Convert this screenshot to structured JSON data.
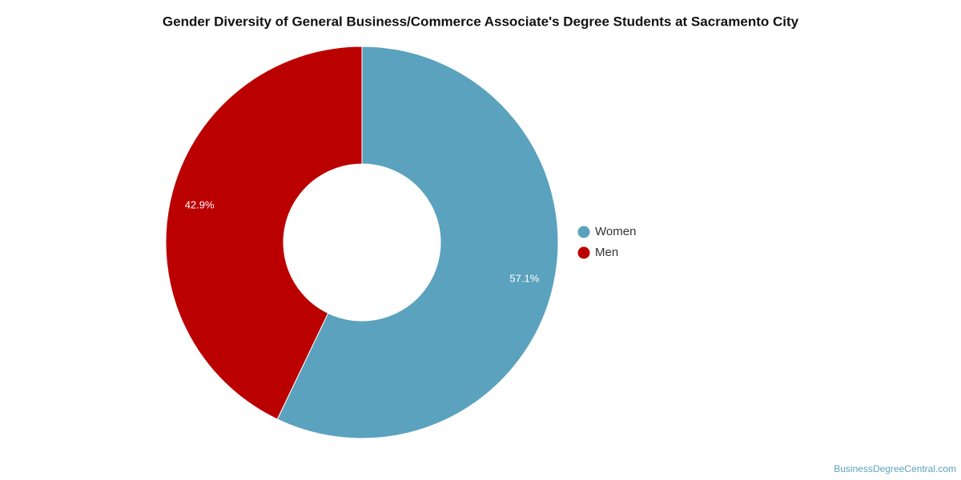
{
  "chart_data": {
    "type": "donut",
    "title": "Gender Diversity of General Business/Commerce Associate's Degree Students at Sacramento City",
    "categories": [
      "Women",
      "Men"
    ],
    "values": [
      57.1,
      42.9
    ],
    "value_labels": [
      "57.1%",
      "42.9%"
    ],
    "colors": [
      "#5ba2be",
      "#bb0000"
    ],
    "legend": "right",
    "credit": "BusinessDegreeCentral.com"
  }
}
